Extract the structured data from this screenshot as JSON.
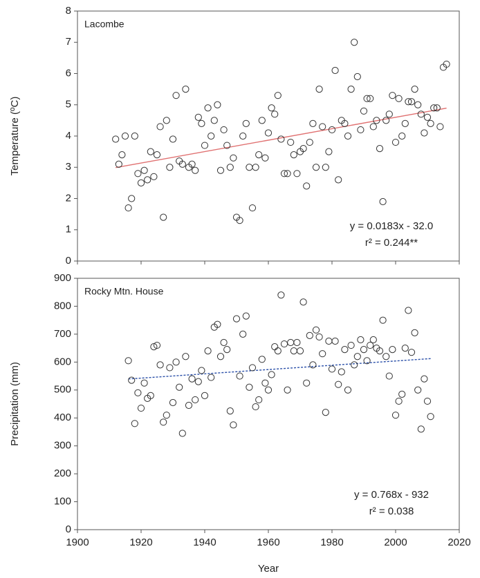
{
  "chart_data": [
    {
      "type": "scatter",
      "title": "Lacombe",
      "y_label": "Temperature (ºC)",
      "xlim": [
        1900,
        2020
      ],
      "xticks": [
        1900,
        1920,
        1940,
        1960,
        1980,
        2000,
        2020
      ],
      "xtick_labels": false,
      "ylim": [
        0,
        8
      ],
      "yticks": [
        0,
        1,
        2,
        3,
        4,
        5,
        6,
        7,
        8
      ],
      "marker_color": "#333333",
      "x": [
        1912,
        1913,
        1914,
        1915,
        1916,
        1917,
        1918,
        1919,
        1920,
        1921,
        1922,
        1923,
        1924,
        1925,
        1926,
        1927,
        1928,
        1929,
        1930,
        1931,
        1932,
        1933,
        1934,
        1935,
        1936,
        1937,
        1938,
        1939,
        1940,
        1941,
        1942,
        1943,
        1944,
        1945,
        1946,
        1947,
        1948,
        1949,
        1950,
        1951,
        1952,
        1953,
        1954,
        1955,
        1956,
        1957,
        1958,
        1959,
        1960,
        1961,
        1962,
        1963,
        1964,
        1965,
        1966,
        1967,
        1968,
        1969,
        1970,
        1971,
        1972,
        1973,
        1974,
        1975,
        1976,
        1977,
        1978,
        1979,
        1980,
        1981,
        1982,
        1983,
        1984,
        1985,
        1986,
        1987,
        1988,
        1989,
        1990,
        1991,
        1992,
        1993,
        1994,
        1995,
        1996,
        1997,
        1998,
        1999,
        2000,
        2001,
        2002,
        2003,
        2004,
        2005,
        2006,
        2007,
        2008,
        2009,
        2010,
        2011,
        2012,
        2013,
        2014,
        2015,
        2016
      ],
      "values": [
        3.9,
        3.1,
        3.4,
        4.0,
        1.7,
        2.0,
        4.0,
        2.8,
        2.5,
        2.9,
        2.6,
        3.5,
        2.7,
        3.4,
        4.3,
        1.4,
        4.5,
        3.0,
        3.9,
        5.3,
        3.2,
        3.1,
        5.5,
        3.0,
        3.1,
        2.9,
        4.6,
        4.4,
        3.7,
        4.9,
        4.0,
        4.5,
        5.0,
        2.9,
        4.2,
        3.7,
        3.0,
        3.3,
        1.4,
        1.3,
        4.0,
        4.4,
        3.0,
        1.7,
        3.0,
        3.4,
        4.5,
        3.3,
        4.1,
        4.9,
        4.7,
        5.3,
        3.9,
        2.8,
        2.8,
        3.8,
        3.4,
        2.8,
        3.5,
        3.6,
        2.4,
        3.8,
        4.4,
        3.0,
        5.5,
        4.3,
        3.0,
        3.5,
        4.2,
        6.1,
        2.6,
        4.5,
        4.4,
        4.0,
        5.5,
        7.0,
        5.9,
        4.2,
        4.8,
        5.2,
        5.2,
        4.3,
        4.5,
        3.6,
        1.9,
        4.5,
        4.7,
        5.3,
        3.8,
        5.2,
        4.0,
        4.4,
        5.1,
        5.1,
        5.5,
        5.0,
        4.7,
        4.1,
        4.6,
        4.4,
        4.9,
        4.9,
        4.3,
        6.2,
        6.3
      ],
      "trend": {
        "slope": 0.0183,
        "intercept": -32.0,
        "color": "#e07070",
        "dashed": false
      },
      "annotations": [
        "y = 0.0183x - 32.0",
        "r² = 0.244**"
      ]
    },
    {
      "type": "scatter",
      "title": "Rocky Mtn. House",
      "y_label": "Precipitation (mm)",
      "x_label": "Year",
      "xlim": [
        1900,
        2020
      ],
      "xticks": [
        1900,
        1920,
        1940,
        1960,
        1980,
        2000,
        2020
      ],
      "xtick_labels": true,
      "ylim": [
        0,
        900
      ],
      "yticks": [
        0,
        100,
        200,
        300,
        400,
        500,
        600,
        700,
        800,
        900
      ],
      "marker_color": "#333333",
      "x": [
        1916,
        1917,
        1918,
        1919,
        1920,
        1921,
        1922,
        1923,
        1924,
        1925,
        1926,
        1927,
        1928,
        1929,
        1930,
        1931,
        1932,
        1933,
        1934,
        1935,
        1936,
        1937,
        1938,
        1939,
        1940,
        1941,
        1942,
        1943,
        1944,
        1945,
        1946,
        1947,
        1948,
        1949,
        1950,
        1951,
        1952,
        1953,
        1954,
        1955,
        1956,
        1957,
        1958,
        1959,
        1960,
        1961,
        1962,
        1963,
        1964,
        1965,
        1966,
        1967,
        1968,
        1969,
        1970,
        1971,
        1972,
        1973,
        1974,
        1975,
        1976,
        1977,
        1978,
        1979,
        1980,
        1981,
        1982,
        1983,
        1984,
        1985,
        1986,
        1987,
        1988,
        1989,
        1990,
        1991,
        1992,
        1993,
        1994,
        1995,
        1996,
        1997,
        1998,
        1999,
        2000,
        2001,
        2002,
        2003,
        2004,
        2005,
        2006,
        2007,
        2008,
        2009,
        2010,
        2011
      ],
      "values": [
        605,
        535,
        380,
        490,
        435,
        525,
        470,
        480,
        655,
        660,
        590,
        385,
        410,
        580,
        455,
        600,
        510,
        345,
        620,
        445,
        540,
        465,
        530,
        570,
        480,
        640,
        545,
        725,
        735,
        620,
        670,
        645,
        425,
        375,
        755,
        550,
        700,
        765,
        510,
        580,
        440,
        465,
        610,
        525,
        500,
        555,
        655,
        640,
        840,
        665,
        500,
        670,
        640,
        670,
        640,
        815,
        525,
        695,
        590,
        715,
        690,
        630,
        420,
        675,
        575,
        675,
        520,
        565,
        645,
        500,
        660,
        590,
        620,
        680,
        645,
        605,
        660,
        680,
        650,
        640,
        750,
        620,
        550,
        645,
        410,
        460,
        485,
        650,
        785,
        635,
        705,
        500,
        360,
        540,
        460,
        405
      ],
      "trend": {
        "slope": 0.768,
        "intercept": -932,
        "color": "#2a4fa8",
        "dashed": true
      },
      "annotations": [
        "y = 0.768x - 932",
        "r² = 0.038"
      ]
    }
  ]
}
